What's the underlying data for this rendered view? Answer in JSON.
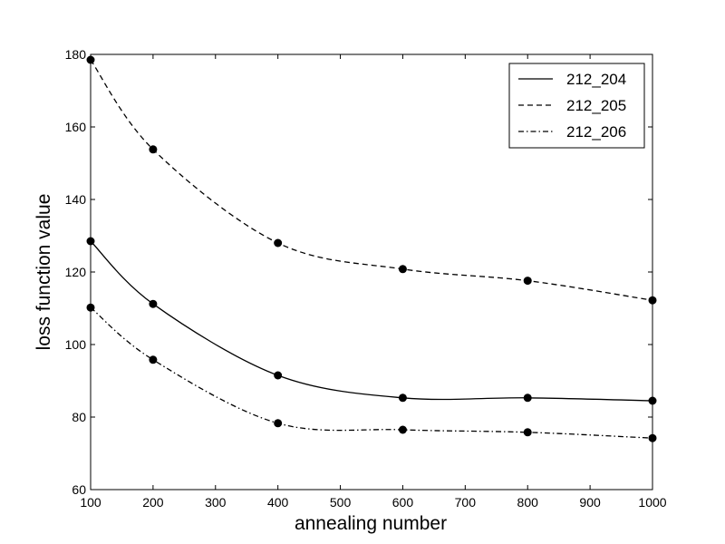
{
  "chart_data": {
    "type": "line",
    "xlabel": "annealing number",
    "ylabel": "loss function value",
    "xlim": [
      100,
      1000
    ],
    "ylim": [
      60,
      180
    ],
    "xticks": [
      100,
      200,
      300,
      400,
      500,
      600,
      700,
      800,
      900,
      1000
    ],
    "yticks": [
      60,
      80,
      100,
      120,
      140,
      160,
      180
    ],
    "grid": false,
    "legend_position": "top-right",
    "x": [
      100,
      200,
      400,
      600,
      800,
      1000
    ],
    "series": [
      {
        "name": "212_204",
        "line_style": "solid",
        "values": [
          128.5,
          111.2,
          91.5,
          85.3,
          85.3,
          84.5
        ]
      },
      {
        "name": "212_205",
        "line_style": "dashed",
        "values": [
          178.5,
          153.8,
          128.0,
          120.8,
          117.6,
          112.2
        ]
      },
      {
        "name": "212_206",
        "line_style": "dashdot",
        "values": [
          110.2,
          95.8,
          78.3,
          76.5,
          75.8,
          74.2
        ]
      }
    ]
  }
}
